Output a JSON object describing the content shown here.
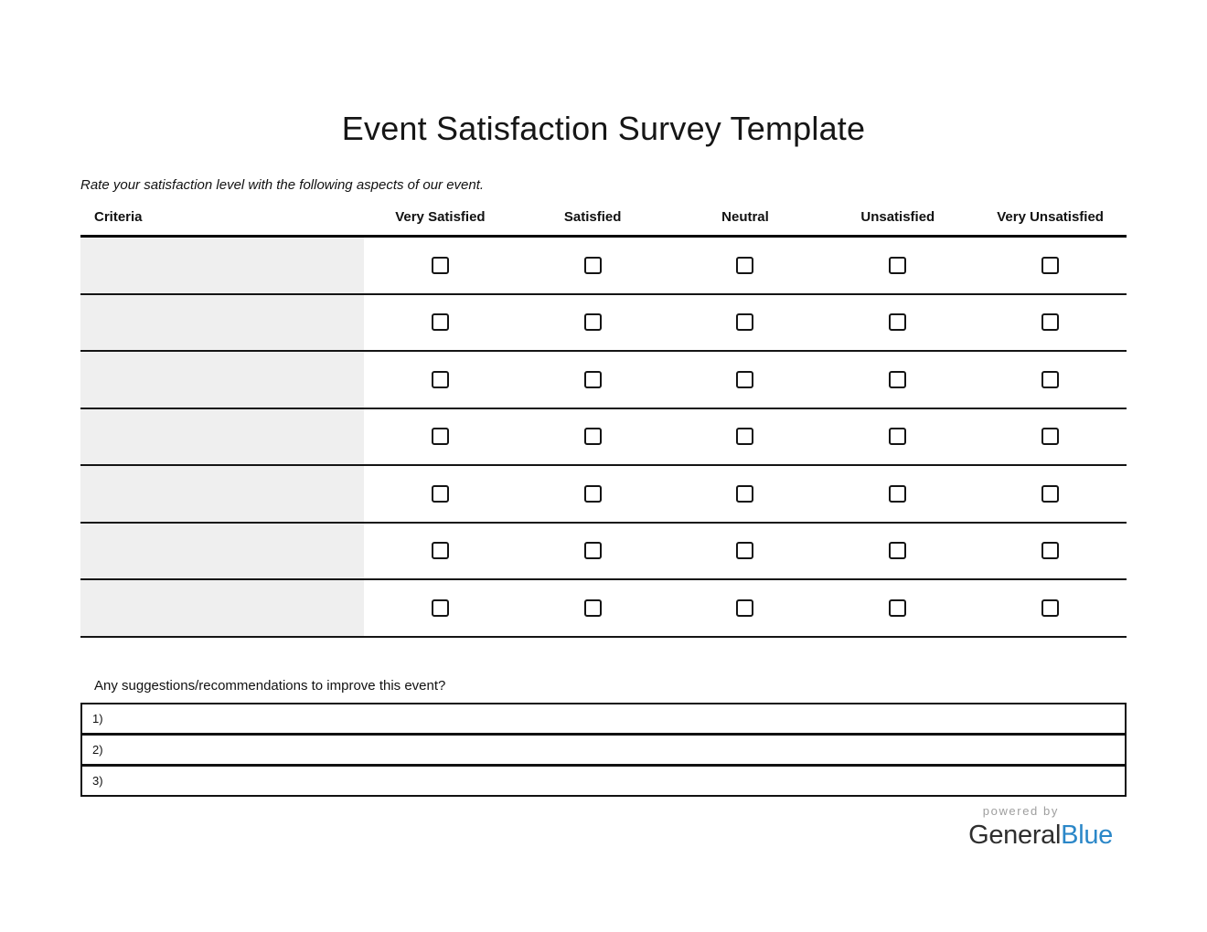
{
  "page": {
    "title": "Event Satisfaction Survey Template",
    "instruction": "Rate your satisfaction level with the following aspects of our event."
  },
  "table": {
    "headers": [
      "Criteria",
      "Very Satisfied",
      "Satisfied",
      "Neutral",
      "Unsatisfied",
      "Very Unsatisfied"
    ],
    "rows": 7,
    "row_options": [
      "very-satisfied",
      "satisfied",
      "neutral",
      "unsatisfied",
      "very-unsatisfied"
    ],
    "checkbox_state": "unchecked"
  },
  "suggestions": {
    "label": "Any suggestions/recommendations to improve this event?",
    "items": [
      "1)",
      "2)",
      "3)"
    ]
  },
  "footer": {
    "powered_by": "powered by",
    "brand_general": "General",
    "brand_blue": "Blue"
  },
  "colors": {
    "criteria_cell_bg": "#efefef",
    "table_line": "#141414",
    "brand_blue": "#2b87c8",
    "powered_by_gray": "#9e9e9e"
  }
}
